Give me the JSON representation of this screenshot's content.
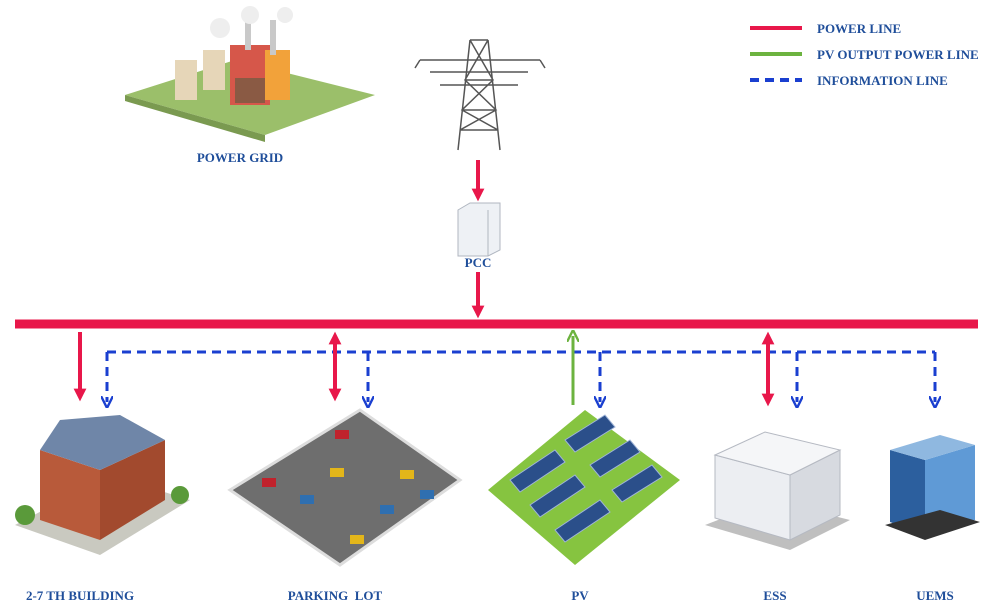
{
  "legend": [
    {
      "label": "POWER LINE",
      "color": "#e8174a"
    },
    {
      "label": "PV OUTPUT POWER LINE",
      "color": "#6cb33f"
    },
    {
      "label": "INFORMATION LINE",
      "color": "#1a3fd0"
    }
  ],
  "nodes": {
    "grid": "POWER GRID",
    "pcc": "PCC",
    "building": "2-7 TH BUILDING",
    "parking": "PARKING  LOT",
    "pv": "PV",
    "ess": "ESS",
    "uems": "UEMS"
  }
}
